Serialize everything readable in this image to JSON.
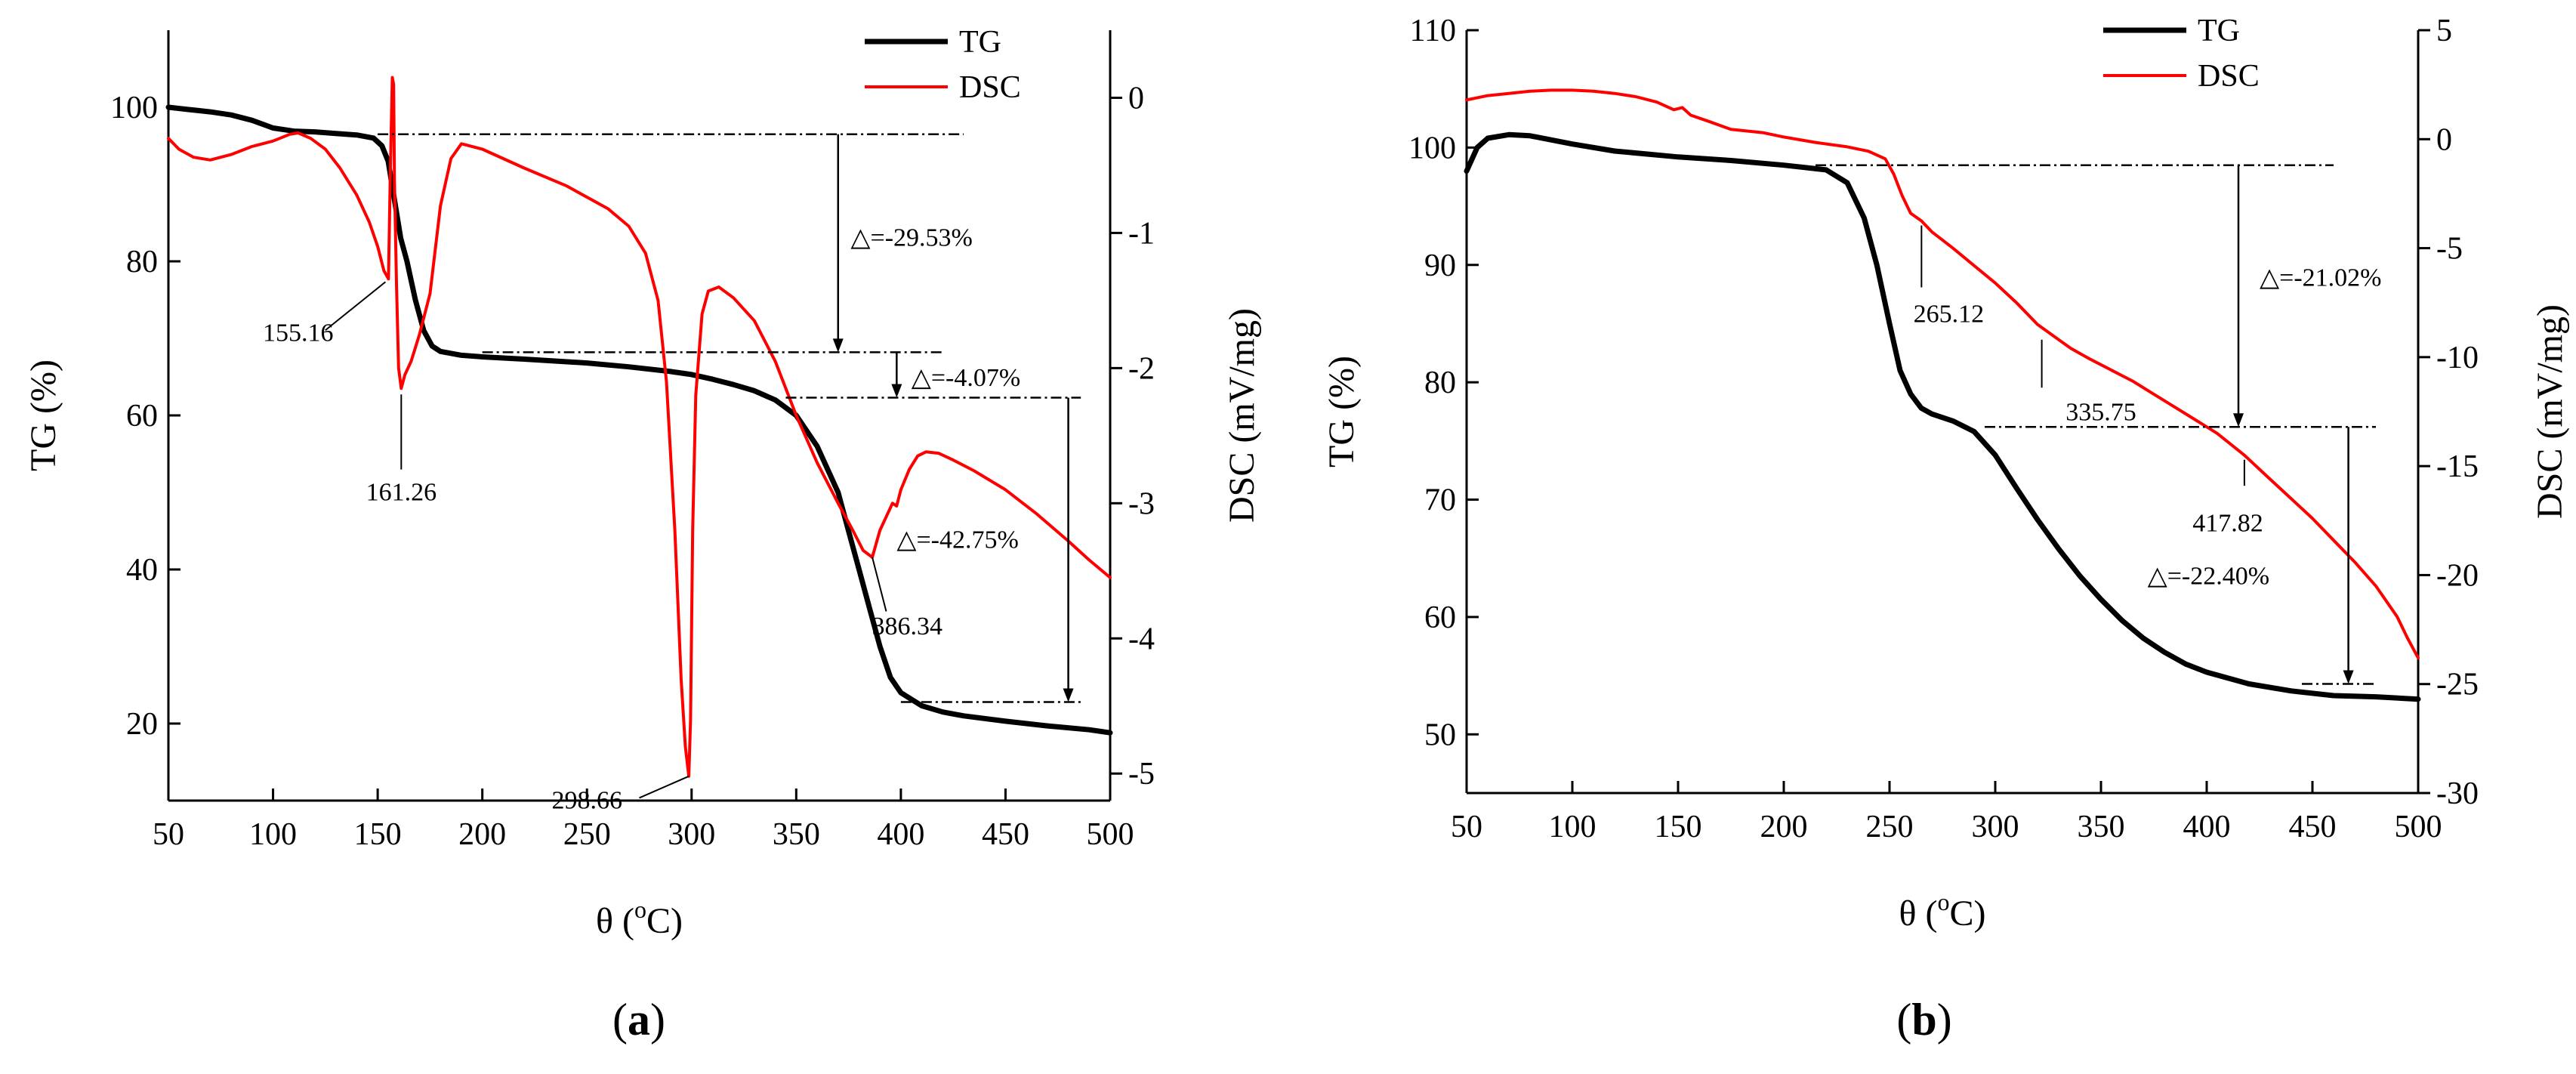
{
  "chart_data": [
    {
      "panel": "a",
      "type": "line",
      "panel_label": "a",
      "xlabel": "θ (°C)",
      "xlabel_main": "θ (",
      "xlabel_sup": "o",
      "xlabel_tail": "C)",
      "ylabel_left": "TG (%)",
      "ylabel_right": "DSC (mV/mg)",
      "xlim": [
        50,
        500
      ],
      "ylim_left": [
        10,
        110
      ],
      "ylim_right": [
        -5.2,
        0.5
      ],
      "x_ticks": [
        50,
        100,
        150,
        200,
        250,
        300,
        350,
        400,
        450,
        500
      ],
      "y_left_ticks": [
        20,
        40,
        60,
        80,
        100
      ],
      "y_right_ticks": [
        0,
        -1,
        -2,
        -3,
        -4,
        -5
      ],
      "legend": [
        "TG",
        "DSC"
      ],
      "series": [
        {
          "name": "TG",
          "color": "#000000",
          "axis": "left",
          "points": [
            [
              50,
              100
            ],
            [
              60,
              99.7
            ],
            [
              70,
              99.4
            ],
            [
              80,
              99
            ],
            [
              90,
              98.3
            ],
            [
              100,
              97.3
            ],
            [
              110,
              96.9
            ],
            [
              120,
              96.8
            ],
            [
              130,
              96.6
            ],
            [
              140,
              96.4
            ],
            [
              148,
              96
            ],
            [
              152,
              95
            ],
            [
              155,
              93
            ],
            [
              158,
              88
            ],
            [
              161,
              83
            ],
            [
              164,
              80
            ],
            [
              168,
              75
            ],
            [
              172,
              71
            ],
            [
              176,
              69
            ],
            [
              180,
              68.3
            ],
            [
              190,
              67.8
            ],
            [
              200,
              67.6
            ],
            [
              220,
              67.3
            ],
            [
              250,
              66.8
            ],
            [
              270,
              66.3
            ],
            [
              290,
              65.7
            ],
            [
              300,
              65.3
            ],
            [
              310,
              64.7
            ],
            [
              320,
              64
            ],
            [
              330,
              63.2
            ],
            [
              340,
              62
            ],
            [
              350,
              60
            ],
            [
              360,
              56
            ],
            [
              370,
              50
            ],
            [
              375,
              45
            ],
            [
              380,
              40
            ],
            [
              385,
              35
            ],
            [
              390,
              30
            ],
            [
              395,
              26
            ],
            [
              400,
              24
            ],
            [
              410,
              22.3
            ],
            [
              420,
              21.5
            ],
            [
              430,
              21
            ],
            [
              450,
              20.3
            ],
            [
              470,
              19.7
            ],
            [
              490,
              19.2
            ],
            [
              500,
              18.8
            ]
          ]
        },
        {
          "name": "DSC",
          "color": "#ff0000",
          "axis": "right",
          "points": [
            [
              50,
              -0.3
            ],
            [
              55,
              -0.38
            ],
            [
              62,
              -0.44
            ],
            [
              70,
              -0.46
            ],
            [
              80,
              -0.42
            ],
            [
              90,
              -0.36
            ],
            [
              100,
              -0.32
            ],
            [
              108,
              -0.27
            ],
            [
              112,
              -0.26
            ],
            [
              118,
              -0.3
            ],
            [
              125,
              -0.38
            ],
            [
              132,
              -0.52
            ],
            [
              140,
              -0.72
            ],
            [
              146,
              -0.92
            ],
            [
              150,
              -1.1
            ],
            [
              153,
              -1.28
            ],
            [
              155.16,
              -1.34
            ],
            [
              156,
              -0.6
            ],
            [
              157,
              0.15
            ],
            [
              157.6,
              0.1
            ],
            [
              158,
              -0.6
            ],
            [
              159,
              -1.4
            ],
            [
              160,
              -2.0
            ],
            [
              161.26,
              -2.15
            ],
            [
              163,
              -2.05
            ],
            [
              166,
              -1.95
            ],
            [
              170,
              -1.75
            ],
            [
              175,
              -1.45
            ],
            [
              180,
              -0.8
            ],
            [
              185,
              -0.45
            ],
            [
              190,
              -0.34
            ],
            [
              200,
              -0.38
            ],
            [
              210,
              -0.45
            ],
            [
              220,
              -0.52
            ],
            [
              240,
              -0.65
            ],
            [
              260,
              -0.82
            ],
            [
              270,
              -0.95
            ],
            [
              278,
              -1.15
            ],
            [
              284,
              -1.5
            ],
            [
              288,
              -2.1
            ],
            [
              292,
              -3.2
            ],
            [
              295,
              -4.3
            ],
            [
              297,
              -4.8
            ],
            [
              298.66,
              -5.02
            ],
            [
              299.5,
              -4.6
            ],
            [
              300.5,
              -3.2
            ],
            [
              302,
              -2.2
            ],
            [
              305,
              -1.6
            ],
            [
              308,
              -1.43
            ],
            [
              313,
              -1.4
            ],
            [
              320,
              -1.48
            ],
            [
              330,
              -1.65
            ],
            [
              340,
              -1.95
            ],
            [
              350,
              -2.35
            ],
            [
              360,
              -2.7
            ],
            [
              370,
              -3.0
            ],
            [
              377,
              -3.2
            ],
            [
              382,
              -3.35
            ],
            [
              386.34,
              -3.4
            ],
            [
              390,
              -3.2
            ],
            [
              393,
              -3.1
            ],
            [
              396,
              -3.0
            ],
            [
              398,
              -3.02
            ],
            [
              400,
              -2.9
            ],
            [
              404,
              -2.75
            ],
            [
              408,
              -2.65
            ],
            [
              412,
              -2.62
            ],
            [
              418,
              -2.63
            ],
            [
              425,
              -2.68
            ],
            [
              435,
              -2.76
            ],
            [
              450,
              -2.9
            ],
            [
              465,
              -3.08
            ],
            [
              480,
              -3.28
            ],
            [
              490,
              -3.42
            ],
            [
              500,
              -3.55
            ]
          ]
        }
      ],
      "annotations": [
        {
          "text": "155.16",
          "x": 155.16,
          "axis": "right",
          "y": -1.34
        },
        {
          "text": "161.26",
          "x": 161.26,
          "axis": "right",
          "y": -2.15
        },
        {
          "text": "298.66",
          "x": 298.66,
          "axis": "right",
          "y": -5.02
        },
        {
          "text": "386.34",
          "x": 386.34,
          "axis": "right",
          "y": -3.4
        },
        {
          "text": "△=-29.53%"
        },
        {
          "text": "△=-4.07%"
        },
        {
          "text": "△=-42.75%"
        }
      ]
    },
    {
      "panel": "b",
      "type": "line",
      "panel_label": "b",
      "xlabel": "θ (°C)",
      "xlabel_main": "θ (",
      "xlabel_sup": "o",
      "xlabel_tail": "C)",
      "ylabel_left": "TG (%)",
      "ylabel_right": "DSC (mV/mg)",
      "xlim": [
        50,
        500
      ],
      "ylim_left": [
        45,
        110
      ],
      "ylim_right": [
        -30,
        5
      ],
      "x_ticks": [
        50,
        100,
        150,
        200,
        250,
        300,
        350,
        400,
        450,
        500
      ],
      "y_left_ticks": [
        50,
        60,
        70,
        80,
        90,
        100,
        110
      ],
      "y_right_ticks": [
        5,
        0,
        -5,
        -10,
        -15,
        -20,
        -25,
        -30
      ],
      "legend": [
        "TG",
        "DSC"
      ],
      "series": [
        {
          "name": "TG",
          "color": "#000000",
          "axis": "left",
          "points": [
            [
              50,
              98
            ],
            [
              55,
              100
            ],
            [
              60,
              100.8
            ],
            [
              70,
              101.1
            ],
            [
              80,
              101
            ],
            [
              100,
              100.3
            ],
            [
              120,
              99.7
            ],
            [
              150,
              99.2
            ],
            [
              175,
              98.9
            ],
            [
              200,
              98.5
            ],
            [
              220,
              98.1
            ],
            [
              230,
              97
            ],
            [
              238,
              94
            ],
            [
              244,
              90
            ],
            [
              250,
              85
            ],
            [
              255,
              81
            ],
            [
              260,
              79
            ],
            [
              265,
              77.8
            ],
            [
              270,
              77.3
            ],
            [
              280,
              76.7
            ],
            [
              290,
              75.8
            ],
            [
              300,
              73.8
            ],
            [
              310,
              71
            ],
            [
              320,
              68.3
            ],
            [
              330,
              65.8
            ],
            [
              340,
              63.5
            ],
            [
              350,
              61.5
            ],
            [
              360,
              59.7
            ],
            [
              370,
              58.2
            ],
            [
              380,
              57
            ],
            [
              390,
              56
            ],
            [
              400,
              55.3
            ],
            [
              420,
              54.3
            ],
            [
              440,
              53.7
            ],
            [
              460,
              53.3
            ],
            [
              480,
              53.2
            ],
            [
              500,
              53
            ]
          ]
        },
        {
          "name": "DSC",
          "color": "#ff0000",
          "axis": "right",
          "points": [
            [
              50,
              1.8
            ],
            [
              60,
              2.0
            ],
            [
              70,
              2.1
            ],
            [
              80,
              2.2
            ],
            [
              90,
              2.25
            ],
            [
              100,
              2.25
            ],
            [
              110,
              2.2
            ],
            [
              120,
              2.1
            ],
            [
              130,
              1.95
            ],
            [
              140,
              1.7
            ],
            [
              148,
              1.35
            ],
            [
              152,
              1.45
            ],
            [
              156,
              1.1
            ],
            [
              165,
              0.8
            ],
            [
              175,
              0.45
            ],
            [
              190,
              0.3
            ],
            [
              200,
              0.1
            ],
            [
              215,
              -0.15
            ],
            [
              230,
              -0.35
            ],
            [
              240,
              -0.55
            ],
            [
              248,
              -0.9
            ],
            [
              252,
              -1.6
            ],
            [
              256,
              -2.6
            ],
            [
              260,
              -3.4
            ],
            [
              265.12,
              -3.75
            ],
            [
              270,
              -4.25
            ],
            [
              280,
              -5.0
            ],
            [
              290,
              -5.8
            ],
            [
              300,
              -6.6
            ],
            [
              310,
              -7.5
            ],
            [
              320,
              -8.5
            ],
            [
              330,
              -9.2
            ],
            [
              335.75,
              -9.6
            ],
            [
              345,
              -10.1
            ],
            [
              355,
              -10.6
            ],
            [
              365,
              -11.1
            ],
            [
              375,
              -11.7
            ],
            [
              385,
              -12.3
            ],
            [
              395,
              -12.9
            ],
            [
              405,
              -13.5
            ],
            [
              417.82,
              -14.5
            ],
            [
              430,
              -15.6
            ],
            [
              440,
              -16.5
            ],
            [
              450,
              -17.4
            ],
            [
              460,
              -18.4
            ],
            [
              470,
              -19.4
            ],
            [
              480,
              -20.5
            ],
            [
              490,
              -21.9
            ],
            [
              495,
              -22.9
            ],
            [
              500,
              -23.8
            ]
          ]
        }
      ],
      "annotations": [
        {
          "text": "265.12",
          "x": 265.12,
          "axis": "right",
          "y": -3.75
        },
        {
          "text": "335.75",
          "x": 335.75,
          "axis": "right",
          "y": -9.6
        },
        {
          "text": "417.82",
          "x": 417.82,
          "axis": "right",
          "y": -14.5
        },
        {
          "text": "△=-21.02%"
        },
        {
          "text": "△=-22.40%"
        }
      ]
    }
  ]
}
